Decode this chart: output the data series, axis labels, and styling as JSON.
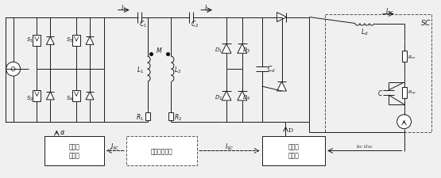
{
  "bg_color": "#f0f0f0",
  "line_color": "#1a1a1a",
  "figsize": [
    5.55,
    2.26
  ],
  "dpi": 100,
  "labels": {
    "S1": "$S_1$",
    "S2": "$S_2$",
    "S3": "$S_3$",
    "S4": "$S_4$",
    "C1": "$C_1$",
    "C2": "$C_2$",
    "L1": "$L_1$",
    "L2": "$L_2$",
    "R1": "$R_1$",
    "R2": "$R_2$",
    "D1": "$D_1$",
    "D2": "$D_2$",
    "D3": "$D_3$",
    "D4": "$D_4$",
    "Cd": "$C_d$",
    "Ld": "$L_d$",
    "Rcs": "$R_{cs}$",
    "Rcp": "$R_{cp}$",
    "C": "$C$",
    "SC": "$SC$",
    "M": "$M$",
    "I1": "$I_1$",
    "I2": "$I_2$",
    "Isc": "$I_{SC}$",
    "Usc": "$U_{SC}$",
    "alpha": "$\\alpha$",
    "D_label": "D",
    "tx_ctrl": "发射侧\n控制器",
    "wireless": "无线通讯方式",
    "rx_ctrl": "接收侧\n控制器"
  }
}
